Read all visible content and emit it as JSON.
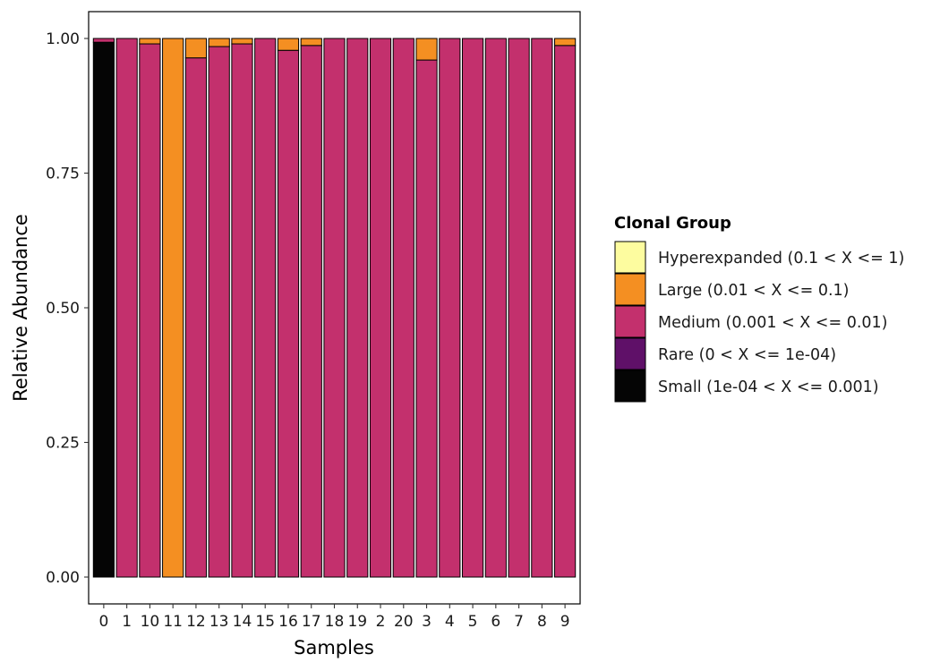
{
  "chart_data": {
    "type": "bar",
    "stacked": true,
    "xlabel": "Samples",
    "ylabel": "Relative Abundance",
    "ylim": [
      0,
      1
    ],
    "yticks": [
      "0.00",
      "0.25",
      "0.50",
      "0.75",
      "1.00"
    ],
    "categories": [
      "0",
      "1",
      "10",
      "11",
      "12",
      "13",
      "14",
      "15",
      "16",
      "17",
      "18",
      "19",
      "2",
      "20",
      "3",
      "4",
      "5",
      "6",
      "7",
      "8",
      "9"
    ],
    "series": [
      {
        "name": "Small (1e-04 < X <= 0.001)",
        "color": "#050505",
        "values": [
          0.993,
          0,
          0,
          0,
          0,
          0,
          0,
          0,
          0,
          0,
          0,
          0,
          0,
          0,
          0,
          0,
          0,
          0,
          0,
          0,
          0
        ]
      },
      {
        "name": "Rare (0 < X <= 1e-04)",
        "color": "#5f1068",
        "values": [
          0,
          0,
          0,
          0,
          0,
          0,
          0,
          0,
          0,
          0,
          0,
          0,
          0,
          0,
          0,
          0,
          0,
          0,
          0,
          0,
          0
        ]
      },
      {
        "name": "Medium (0.001 < X <= 0.01)",
        "color": "#c3306d",
        "values": [
          0.007,
          1.0,
          0.99,
          0,
          0.964,
          0.985,
          0.99,
          1.0,
          0.978,
          0.987,
          1.0,
          1.0,
          1.0,
          1.0,
          0.96,
          1.0,
          1.0,
          1.0,
          1.0,
          1.0,
          0.987
        ]
      },
      {
        "name": "Large (0.01 < X <= 0.1)",
        "color": "#f48f22",
        "values": [
          0,
          0,
          0.01,
          1.0,
          0.036,
          0.015,
          0.01,
          0,
          0.022,
          0.013,
          0,
          0,
          0,
          0,
          0.04,
          0,
          0,
          0,
          0,
          0,
          0.013
        ]
      },
      {
        "name": "Hyperexpanded (0.1 < X <= 1)",
        "color": "#fdfc9f",
        "values": [
          0,
          0,
          0,
          0,
          0,
          0,
          0,
          0,
          0,
          0,
          0,
          0,
          0,
          0,
          0,
          0,
          0,
          0,
          0,
          0,
          0
        ]
      }
    ],
    "legend": {
      "title": "Clonal Group",
      "position": "right",
      "entries": [
        {
          "label": "Hyperexpanded (0.1 < X <= 1)",
          "color": "#fdfc9f"
        },
        {
          "label": "Large (0.01 < X <= 0.1)",
          "color": "#f48f22"
        },
        {
          "label": "Medium (0.001 < X <= 0.01)",
          "color": "#c3306d"
        },
        {
          "label": "Rare (0 < X <= 1e-04)",
          "color": "#5f1068"
        },
        {
          "label": "Small (1e-04 < X <= 0.001)",
          "color": "#050505"
        }
      ]
    },
    "grid": false
  }
}
